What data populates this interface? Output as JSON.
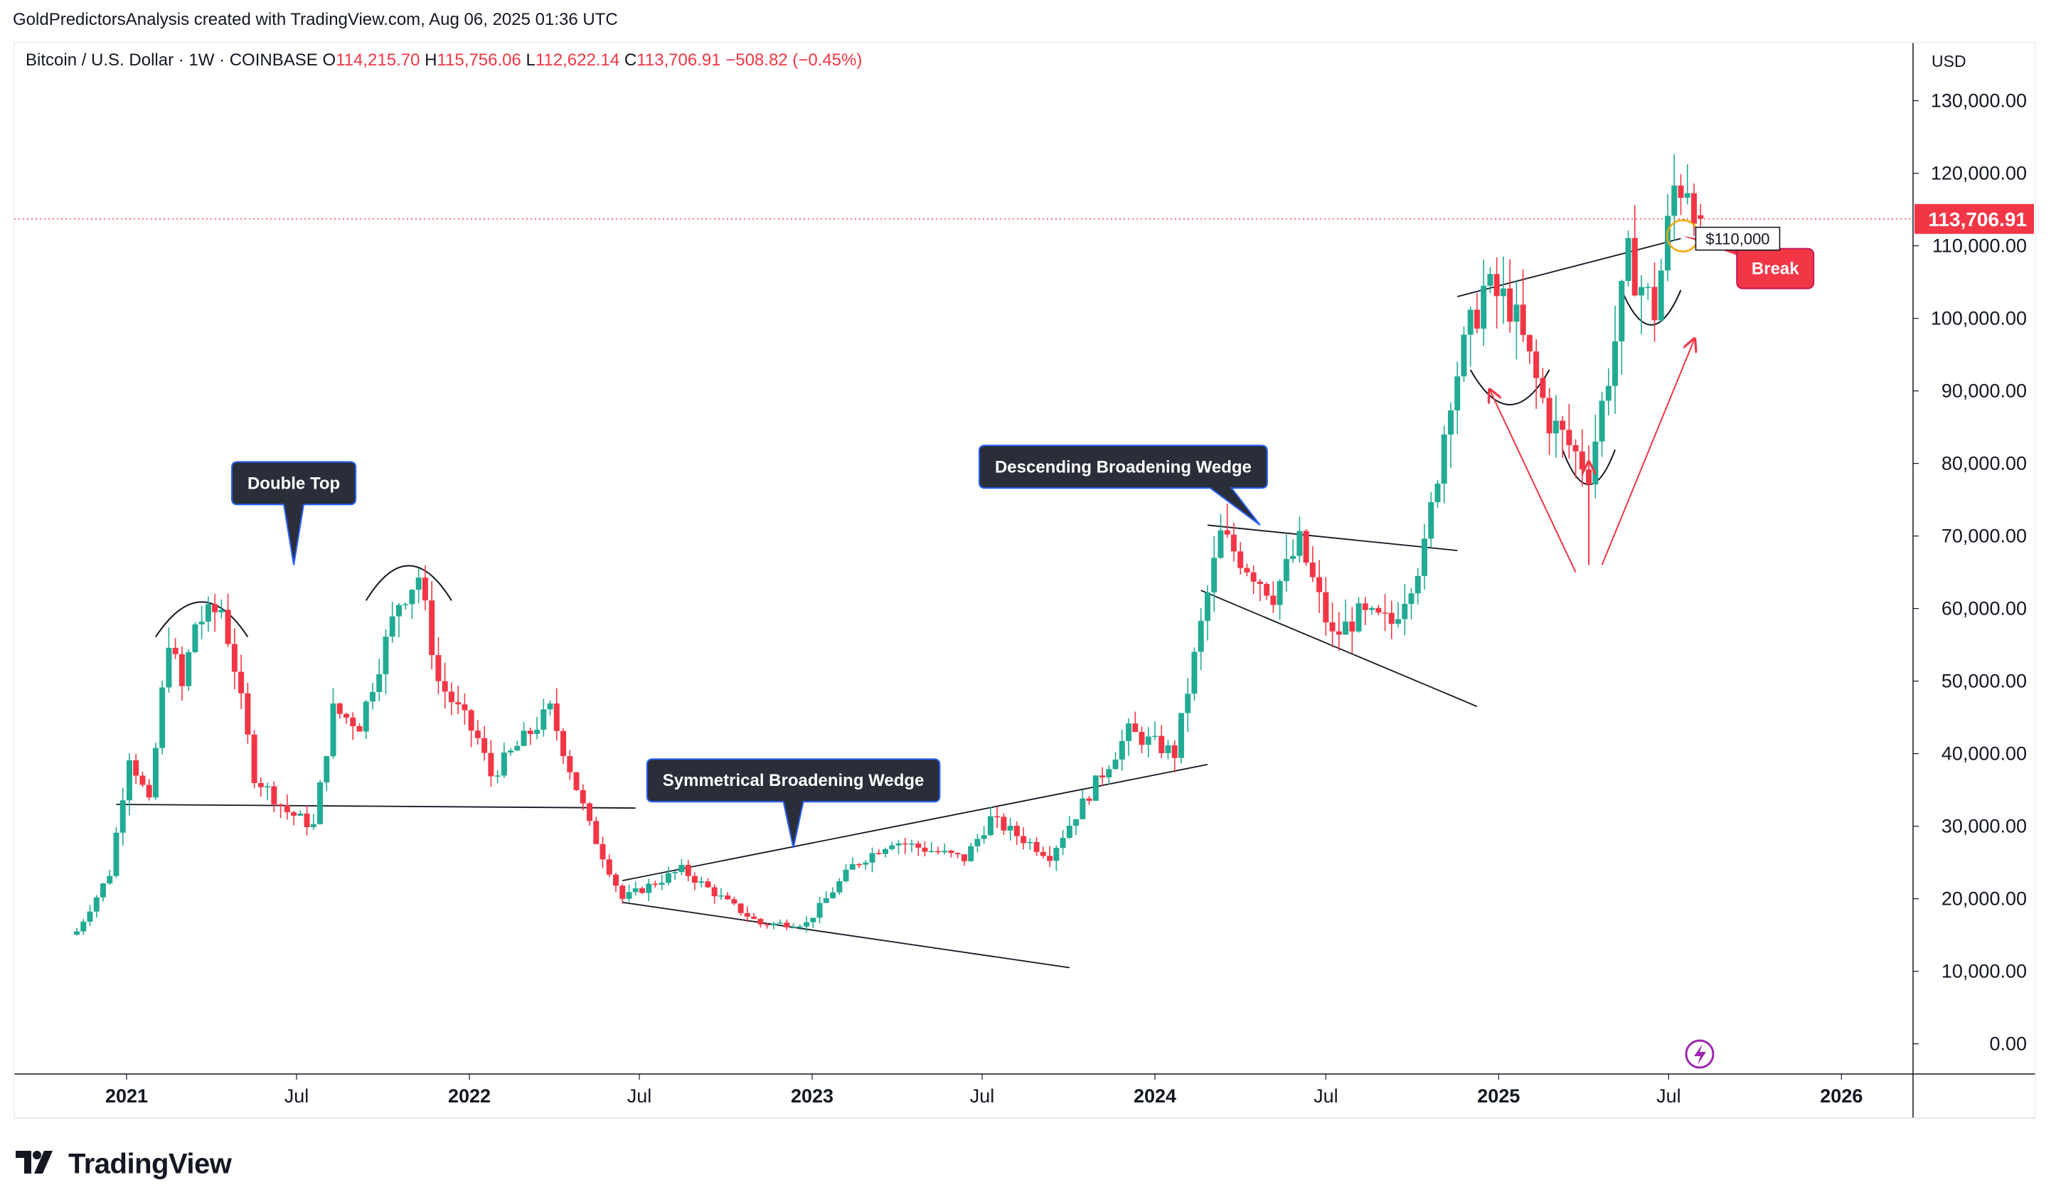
{
  "header": {
    "attribution": "GoldPredictorsAnalysis created with TradingView.com, Aug 06, 2025 01:36 UTC"
  },
  "legend": {
    "symbol": "Bitcoin / U.S. Dollar · 1W · COINBASE",
    "open_label": "O",
    "open": "114,215.70",
    "high_label": "H",
    "high": "115,756.06",
    "low_label": "L",
    "low": "112,622.14",
    "close_label": "C",
    "close": "113,706.91",
    "change": "−508.82 (−0.45%)"
  },
  "price_axis": {
    "currency": "USD",
    "ticks": [
      "130,000.00",
      "120,000.00",
      "110,000.00",
      "100,000.00",
      "90,000.00",
      "80,000.00",
      "70,000.00",
      "60,000.00",
      "50,000.00",
      "40,000.00",
      "30,000.00",
      "20,000.00",
      "10,000.00",
      "0.00"
    ],
    "last_price_label": "113,706.91"
  },
  "time_axis": {
    "ticks": [
      "2021",
      "Jul",
      "2022",
      "Jul",
      "2023",
      "Jul",
      "2024",
      "Jul",
      "2025",
      "Jul",
      "2026"
    ]
  },
  "annotations": {
    "double_top": "Double Top",
    "symmetrical_wedge": "Symmetrical Broadening Wedge",
    "descending_wedge": "Descending Broadening Wedge",
    "price_label": "$110,000",
    "break_label": "Break"
  },
  "colors": {
    "up": "#22ab94",
    "down": "#f23645",
    "last_price_bg": "#f23645",
    "callout_bg": "#2a2e39",
    "callout_border": "#2962ff",
    "break_bg": "#f23645",
    "arrow": "#f23645",
    "circle": "#f7a600"
  },
  "brand": {
    "name": "TradingView"
  },
  "chart_data": {
    "type": "candlestick",
    "title": "Bitcoin / U.S. Dollar · 1W · COINBASE",
    "interval": "1W",
    "ylabel": "USD",
    "ylim": [
      0,
      130000
    ],
    "x_range": [
      "2020-11-09",
      "2026-02-15"
    ],
    "x_ticks": [
      "2021",
      "Jul",
      "2022",
      "Jul",
      "2023",
      "Jul",
      "2024",
      "Jul",
      "2025",
      "Jul",
      "2026"
    ],
    "grid": false,
    "anchors": [
      {
        "date": "2020-11-09",
        "close": 15500
      },
      {
        "date": "2020-12-14",
        "close": 23500
      },
      {
        "date": "2021-01-04",
        "close": 40000
      },
      {
        "date": "2021-01-25",
        "close": 33000
      },
      {
        "date": "2021-02-15",
        "close": 56000
      },
      {
        "date": "2021-03-01",
        "close": 49000
      },
      {
        "date": "2021-03-15",
        "close": 58000
      },
      {
        "date": "2021-04-12",
        "close": 60000
      },
      {
        "date": "2021-04-26",
        "close": 52000
      },
      {
        "date": "2021-05-17",
        "close": 37000
      },
      {
        "date": "2021-06-21",
        "close": 32000
      },
      {
        "date": "2021-07-19",
        "close": 30000
      },
      {
        "date": "2021-08-09",
        "close": 46000
      },
      {
        "date": "2021-09-06",
        "close": 44000
      },
      {
        "date": "2021-10-18",
        "close": 61000
      },
      {
        "date": "2021-11-08",
        "close": 64500
      },
      {
        "date": "2021-11-29",
        "close": 50000
      },
      {
        "date": "2022-01-10",
        "close": 42000
      },
      {
        "date": "2022-01-24",
        "close": 37000
      },
      {
        "date": "2022-03-28",
        "close": 46000
      },
      {
        "date": "2022-05-09",
        "close": 30000
      },
      {
        "date": "2022-06-13",
        "close": 20000
      },
      {
        "date": "2022-08-15",
        "close": 24000
      },
      {
        "date": "2022-10-03",
        "close": 19500
      },
      {
        "date": "2022-11-07",
        "close": 16500
      },
      {
        "date": "2022-12-26",
        "close": 16600
      },
      {
        "date": "2023-02-13",
        "close": 24500
      },
      {
        "date": "2023-03-27",
        "close": 28000
      },
      {
        "date": "2023-06-12",
        "close": 25500
      },
      {
        "date": "2023-07-10",
        "close": 31000
      },
      {
        "date": "2023-09-11",
        "close": 26000
      },
      {
        "date": "2023-10-23",
        "close": 34500
      },
      {
        "date": "2023-12-04",
        "close": 43000
      },
      {
        "date": "2024-01-22",
        "close": 40000
      },
      {
        "date": "2024-02-26",
        "close": 62000
      },
      {
        "date": "2024-03-11",
        "close": 70000
      },
      {
        "date": "2024-05-06",
        "close": 62000
      },
      {
        "date": "2024-06-03",
        "close": 69000
      },
      {
        "date": "2024-07-08",
        "close": 56000
      },
      {
        "date": "2024-08-05",
        "close": 59000
      },
      {
        "date": "2024-09-09",
        "close": 58000
      },
      {
        "date": "2024-10-14",
        "close": 68000
      },
      {
        "date": "2024-11-11",
        "close": 90000
      },
      {
        "date": "2024-12-16",
        "close": 104000
      },
      {
        "date": "2025-01-13",
        "close": 102000
      },
      {
        "date": "2025-02-24",
        "close": 86000
      },
      {
        "date": "2025-04-07",
        "close": 79000
      },
      {
        "date": "2025-05-05",
        "close": 97000
      },
      {
        "date": "2025-05-19",
        "close": 108000
      },
      {
        "date": "2025-06-16",
        "close": 101000
      },
      {
        "date": "2025-07-07",
        "close": 118000
      },
      {
        "date": "2025-07-21",
        "close": 119000
      },
      {
        "date": "2025-08-04",
        "close": 113706.91
      }
    ],
    "last": {
      "open": 114215.7,
      "high": 115756.06,
      "low": 112622.14,
      "close": 113706.91,
      "change": -508.82,
      "change_pct": -0.45
    },
    "trendlines": [
      {
        "name": "Double Top neckline",
        "from": {
          "date": "2020-12-21",
          "price": 33000
        },
        "to": {
          "date": "2022-06-27",
          "price": 32500
        }
      },
      {
        "name": "Symmetrical Broadening Wedge upper",
        "from": {
          "date": "2022-06-13",
          "price": 22500
        },
        "to": {
          "date": "2024-02-26",
          "price": 38500
        }
      },
      {
        "name": "Symmetrical Broadening Wedge lower",
        "from": {
          "date": "2022-06-13",
          "price": 19500
        },
        "to": {
          "date": "2023-10-02",
          "price": 10500
        }
      },
      {
        "name": "Descending Broadening Wedge upper",
        "from": {
          "date": "2024-02-26",
          "price": 71500
        },
        "to": {
          "date": "2024-11-18",
          "price": 68000
        }
      },
      {
        "name": "Descending Broadening Wedge lower",
        "from": {
          "date": "2024-02-19",
          "price": 62500
        },
        "to": {
          "date": "2024-12-09",
          "price": 46500
        }
      },
      {
        "name": "Breakout resistance",
        "from": {
          "date": "2024-11-18",
          "price": 103000
        },
        "to": {
          "date": "2025-07-14",
          "price": 111000
        }
      }
    ],
    "arcs": [
      {
        "pattern": "Double Top",
        "from_date": "2021-02-01",
        "to_date": "2021-05-10",
        "peak": 61000
      },
      {
        "pattern": "Double Top",
        "from_date": "2021-09-13",
        "to_date": "2021-12-13",
        "peak": 66000
      },
      {
        "pattern": "cup",
        "from_date": "2024-12-02",
        "to_date": "2025-02-24",
        "trough": 88000
      },
      {
        "pattern": "cup",
        "from_date": "2025-03-10",
        "to_date": "2025-05-05",
        "trough": 77000
      },
      {
        "pattern": "cup",
        "from_date": "2025-05-12",
        "to_date": "2025-07-14",
        "trough": 99000
      }
    ],
    "callouts": [
      {
        "text": "Double Top",
        "date": "2021-06-28",
        "price": 66000
      },
      {
        "text": "Symmetrical Broadening Wedge",
        "date": "2022-12-12",
        "price": 27000
      },
      {
        "text": "Descending Broadening Wedge",
        "date": "2024-04-22",
        "price": 71500
      }
    ],
    "price_label": {
      "text": "$110,000",
      "date": "2025-08-11",
      "price": 110000
    },
    "break_marker": {
      "text": "Break",
      "date": "2025-07-07",
      "price": 110000
    }
  }
}
